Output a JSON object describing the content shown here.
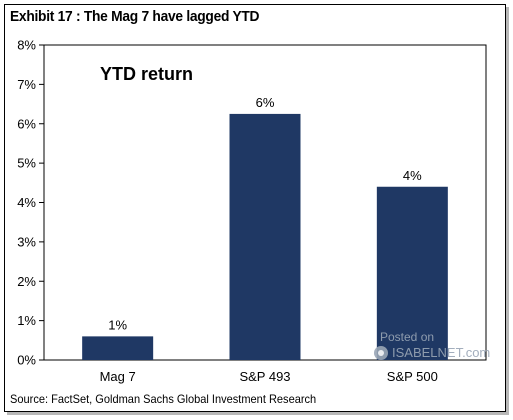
{
  "exhibit_title": "Exhibit 17 : The Mag 7 have lagged YTD",
  "source": "Source: FactSet, Goldman Sachs Global Investment Research",
  "watermark": {
    "line1": "Posted on",
    "line2": "ISABELNET.com"
  },
  "colors": {
    "bar": "#1f3864",
    "axis": "#000000"
  },
  "chart_data": {
    "type": "bar",
    "title": "YTD return",
    "categories": [
      "Mag 7",
      "S&P 493",
      "S&P 500"
    ],
    "values": [
      0.6,
      6.25,
      4.4
    ],
    "data_labels": [
      "1%",
      "6%",
      "4%"
    ],
    "ylim": [
      0,
      8
    ],
    "yticks": [
      0,
      1,
      2,
      3,
      4,
      5,
      6,
      7,
      8
    ],
    "ytick_labels": [
      "0%",
      "1%",
      "2%",
      "3%",
      "4%",
      "5%",
      "6%",
      "7%",
      "8%"
    ],
    "grid": false,
    "xlabel": "",
    "ylabel": ""
  }
}
